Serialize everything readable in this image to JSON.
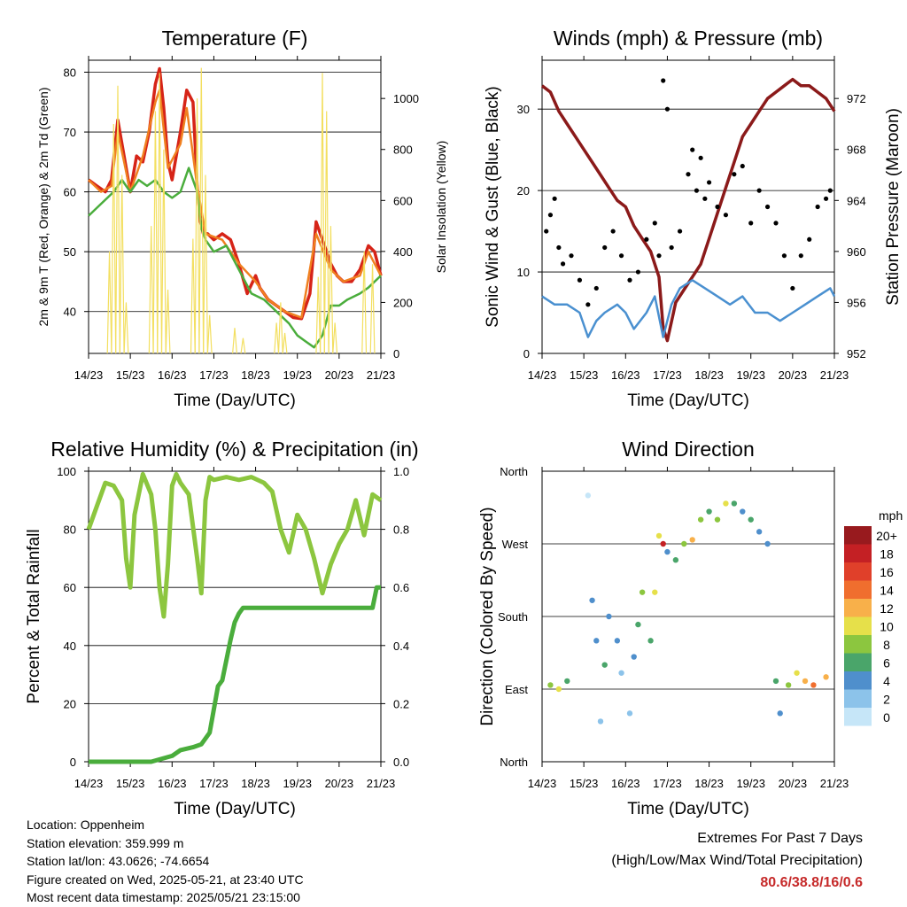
{
  "chart_data": [
    {
      "id": "temperature",
      "type": "line",
      "title": "Temperature (F)",
      "xlabel": "Time (Day/UTC)",
      "ylabel": "2m & 9m T (Red, Orange) & 2m Td (Green)",
      "ylabel_right": "Solar Insolation (Yellow)",
      "x_ticks": [
        "14/23",
        "15/23",
        "16/23",
        "17/23",
        "18/23",
        "19/23",
        "20/23",
        "21/23"
      ],
      "ylim": [
        33,
        82
      ],
      "y_ticks": [
        40,
        50,
        60,
        70,
        80
      ],
      "ylim_right": [
        0,
        1150
      ],
      "y_ticks_right": [
        0,
        200,
        400,
        600,
        800,
        1000
      ],
      "grid": true,
      "series": [
        {
          "color": "#d62418",
          "axis": "left",
          "style": "line",
          "x": [
            0,
            0.2,
            0.4,
            0.55,
            0.7,
            0.85,
            1.0,
            1.15,
            1.3,
            1.45,
            1.6,
            1.7,
            1.8,
            1.9,
            2.0,
            2.1,
            2.2,
            2.35,
            2.5,
            2.6,
            2.68,
            2.75,
            2.85,
            3.0,
            3.2,
            3.4,
            3.6,
            3.8,
            4.0,
            4.1,
            4.2,
            4.3,
            4.5,
            4.7,
            4.9,
            5.1,
            5.3,
            5.45,
            5.6,
            5.8,
            5.95,
            6.1,
            6.3,
            6.5,
            6.7,
            6.85,
            7.0
          ],
          "values": [
            62,
            61,
            60,
            62,
            72,
            66,
            60,
            66,
            65,
            70,
            78,
            80.6,
            74,
            65,
            62,
            66,
            70,
            77,
            75,
            61,
            55,
            53,
            53,
            52,
            53,
            52,
            48,
            43,
            46,
            44,
            43,
            42,
            41,
            40,
            39,
            38.8,
            43,
            55,
            52,
            48,
            46,
            45,
            45,
            47,
            51,
            50,
            46
          ]
        },
        {
          "color": "#f08020",
          "axis": "left",
          "style": "line",
          "x": [
            0,
            0.3,
            0.55,
            0.7,
            0.85,
            1.0,
            1.3,
            1.6,
            1.7,
            1.9,
            2.2,
            2.35,
            2.6,
            2.8,
            3.2,
            3.6,
            4.0,
            4.3,
            4.7,
            5.1,
            5.45,
            5.8,
            6.1,
            6.5,
            6.7,
            7.0
          ],
          "values": [
            62,
            60,
            61,
            70,
            65,
            60,
            66,
            75,
            77,
            64,
            68,
            74,
            61,
            53,
            52,
            48,
            45,
            42,
            40,
            39,
            53,
            47,
            45,
            46,
            50,
            46
          ]
        },
        {
          "color": "#4aad3c",
          "axis": "left",
          "style": "line",
          "x": [
            0,
            0.3,
            0.6,
            0.8,
            1.0,
            1.2,
            1.4,
            1.6,
            1.8,
            2.0,
            2.2,
            2.4,
            2.6,
            2.7,
            2.8,
            3.0,
            3.3,
            3.6,
            3.9,
            4.2,
            4.5,
            4.8,
            5.0,
            5.2,
            5.4,
            5.6,
            5.8,
            6.0,
            6.2,
            6.5,
            6.7,
            7.0
          ],
          "values": [
            56,
            58,
            60,
            62,
            60,
            62,
            61,
            62,
            60,
            59,
            60,
            64,
            60,
            54,
            52,
            50,
            51,
            47,
            43,
            42,
            40,
            38,
            36,
            35,
            34,
            36,
            41,
            41,
            42,
            43,
            44,
            46
          ]
        },
        {
          "color": "#f3df60",
          "axis": "right",
          "style": "spikes",
          "x": [
            0.5,
            0.6,
            0.7,
            0.8,
            0.9,
            1.5,
            1.6,
            1.7,
            1.8,
            1.9,
            2.5,
            2.6,
            2.7,
            2.8,
            2.9,
            3.5,
            3.7,
            4.5,
            4.6,
            4.7,
            5.5,
            5.6,
            5.7,
            5.8,
            5.9,
            6.6,
            6.8
          ],
          "values": [
            400,
            900,
            1050,
            700,
            200,
            500,
            950,
            1100,
            800,
            250,
            450,
            1000,
            1120,
            700,
            150,
            100,
            60,
            120,
            200,
            80,
            300,
            1100,
            950,
            500,
            120,
            400,
            350
          ]
        }
      ]
    },
    {
      "id": "winds",
      "type": "line",
      "title": "Winds (mph) & Pressure (mb)",
      "xlabel": "Time (Day/UTC)",
      "ylabel": "Sonic Wind & Gust (Blue, Black)",
      "ylabel_right": "Station Pressure (Maroon)",
      "x_ticks": [
        "14/23",
        "15/23",
        "16/23",
        "17/23",
        "18/23",
        "19/23",
        "20/23",
        "21/23"
      ],
      "ylim": [
        0,
        36
      ],
      "y_ticks": [
        0,
        10,
        20,
        30
      ],
      "ylim_right": [
        952,
        975
      ],
      "y_ticks_right": [
        952,
        956,
        960,
        964,
        968,
        972
      ],
      "grid": true,
      "series": [
        {
          "color": "#8b1a1a",
          "axis": "right",
          "style": "line",
          "x": [
            0,
            0.2,
            0.4,
            0.6,
            0.8,
            1.0,
            1.2,
            1.4,
            1.6,
            1.8,
            2.0,
            2.2,
            2.4,
            2.6,
            2.8,
            2.9,
            3.0,
            3.2,
            3.4,
            3.6,
            3.8,
            4.0,
            4.2,
            4.4,
            4.6,
            4.8,
            5.0,
            5.2,
            5.4,
            5.6,
            5.8,
            6.0,
            6.2,
            6.4,
            6.6,
            6.8,
            7.0
          ],
          "values": [
            973,
            972.5,
            971,
            970,
            969,
            968,
            967,
            966,
            965,
            964,
            963.5,
            962,
            961,
            960,
            958,
            954,
            953,
            956,
            957,
            958,
            959,
            961,
            963,
            965,
            967,
            969,
            970,
            971,
            972,
            972.5,
            973,
            973.5,
            973,
            973,
            972.5,
            972,
            971
          ]
        },
        {
          "color": "#4a90d0",
          "axis": "left",
          "style": "line",
          "x": [
            0,
            0.3,
            0.6,
            0.9,
            1.1,
            1.3,
            1.5,
            1.8,
            2.0,
            2.2,
            2.5,
            2.7,
            2.9,
            3.1,
            3.3,
            3.6,
            3.9,
            4.2,
            4.5,
            4.8,
            5.1,
            5.4,
            5.7,
            6.0,
            6.3,
            6.6,
            6.9,
            7.0
          ],
          "values": [
            7,
            6,
            6,
            5,
            2,
            4,
            5,
            6,
            5,
            3,
            5,
            7,
            2,
            6,
            8,
            9,
            8,
            7,
            6,
            7,
            5,
            5,
            4,
            5,
            6,
            7,
            8,
            7
          ]
        },
        {
          "color": "#000000",
          "axis": "left",
          "style": "dots",
          "x": [
            0.1,
            0.2,
            0.3,
            0.4,
            0.5,
            0.7,
            0.9,
            1.1,
            1.3,
            1.5,
            1.7,
            1.9,
            2.1,
            2.3,
            2.5,
            2.7,
            2.8,
            2.9,
            3.0,
            3.1,
            3.3,
            3.5,
            3.6,
            3.7,
            3.8,
            3.9,
            4.0,
            4.2,
            4.4,
            4.6,
            4.8,
            5.0,
            5.2,
            5.4,
            5.6,
            5.8,
            6.0,
            6.2,
            6.4,
            6.6,
            6.8,
            6.9
          ],
          "values": [
            15,
            17,
            19,
            13,
            11,
            12,
            9,
            6,
            8,
            13,
            15,
            12,
            9,
            10,
            14,
            16,
            12,
            33.5,
            30,
            13,
            15,
            22,
            25,
            20,
            24,
            19,
            21,
            18,
            17,
            22,
            23,
            16,
            20,
            18,
            16,
            12,
            8,
            12,
            14,
            18,
            19,
            20
          ]
        }
      ]
    },
    {
      "id": "humidity",
      "type": "line",
      "title": "Relative Humidity (%) & Precipitation (in)",
      "xlabel": "Time (Day/UTC)",
      "ylabel": "Percent & Total Rainfall",
      "x_ticks": [
        "14/23",
        "15/23",
        "16/23",
        "17/23",
        "18/23",
        "19/23",
        "20/23",
        "21/23"
      ],
      "ylim": [
        0,
        100
      ],
      "y_ticks": [
        0,
        20,
        40,
        60,
        80,
        100
      ],
      "ylim_right": [
        0,
        1.0
      ],
      "y_ticks_right": [
        "0.0",
        "0.2",
        "0.4",
        "0.6",
        "0.8",
        "1.0"
      ],
      "grid": true,
      "series": [
        {
          "color": "#8cc63f",
          "axis": "left",
          "style": "line",
          "x": [
            0,
            0.2,
            0.4,
            0.6,
            0.8,
            0.9,
            1.0,
            1.1,
            1.3,
            1.5,
            1.6,
            1.7,
            1.8,
            1.9,
            2.0,
            2.1,
            2.2,
            2.4,
            2.6,
            2.7,
            2.8,
            2.9,
            3.0,
            3.3,
            3.6,
            3.9,
            4.2,
            4.4,
            4.6,
            4.8,
            5.0,
            5.2,
            5.4,
            5.6,
            5.8,
            6.0,
            6.2,
            6.4,
            6.6,
            6.8,
            7.0
          ],
          "values": [
            80,
            88,
            96,
            95,
            90,
            70,
            60,
            85,
            99,
            92,
            80,
            60,
            50,
            68,
            95,
            99,
            96,
            92,
            70,
            58,
            90,
            98,
            97,
            98,
            97,
            98,
            96,
            93,
            80,
            72,
            85,
            80,
            70,
            58,
            68,
            75,
            80,
            90,
            78,
            92,
            90
          ]
        },
        {
          "color": "#4aad3c",
          "axis": "right",
          "style": "line",
          "x": [
            0,
            0.5,
            1.0,
            1.5,
            2.0,
            2.2,
            2.5,
            2.7,
            2.9,
            3.0,
            3.1,
            3.2,
            3.3,
            3.4,
            3.5,
            3.6,
            3.7,
            3.8,
            4.0,
            4.5,
            5.0,
            5.5,
            6.0,
            6.5,
            6.8,
            6.9,
            7.0
          ],
          "values": [
            0,
            0,
            0,
            0,
            0.02,
            0.04,
            0.05,
            0.06,
            0.1,
            0.18,
            0.26,
            0.28,
            0.35,
            0.42,
            0.48,
            0.51,
            0.53,
            0.53,
            0.53,
            0.53,
            0.53,
            0.53,
            0.53,
            0.53,
            0.53,
            0.6,
            0.6
          ]
        }
      ]
    },
    {
      "id": "winddir",
      "type": "scatter",
      "title": "Wind Direction",
      "xlabel": "Time (Day/UTC)",
      "ylabel": "Direction (Colored By Speed)",
      "x_ticks": [
        "14/23",
        "15/23",
        "16/23",
        "17/23",
        "18/23",
        "19/23",
        "20/23",
        "21/23"
      ],
      "y_ticks": [
        "North",
        "East",
        "South",
        "West",
        "North"
      ],
      "ylim": [
        0,
        360
      ],
      "grid": true,
      "legend": {
        "title": "mph",
        "labels": [
          "0",
          "2",
          "4",
          "6",
          "8",
          "10",
          "12",
          "14",
          "16",
          "18",
          "20+"
        ],
        "colors": [
          "#c6e6f8",
          "#8cc3ea",
          "#4f8fcc",
          "#4aa56a",
          "#8cc63f",
          "#e6e04a",
          "#f8b04a",
          "#f06e2e",
          "#e0402a",
          "#c42024",
          "#981a1e"
        ],
        "placement": "right"
      },
      "points": [
        {
          "x": 0.2,
          "y": 95,
          "v": 8
        },
        {
          "x": 0.4,
          "y": 90,
          "v": 10
        },
        {
          "x": 0.6,
          "y": 100,
          "v": 6
        },
        {
          "x": 1.1,
          "y": 330,
          "v": 0
        },
        {
          "x": 1.2,
          "y": 200,
          "v": 4
        },
        {
          "x": 1.3,
          "y": 150,
          "v": 4
        },
        {
          "x": 1.4,
          "y": 50,
          "v": 2
        },
        {
          "x": 1.5,
          "y": 120,
          "v": 6
        },
        {
          "x": 1.6,
          "y": 180,
          "v": 4
        },
        {
          "x": 1.8,
          "y": 150,
          "v": 4
        },
        {
          "x": 1.9,
          "y": 110,
          "v": 2
        },
        {
          "x": 2.1,
          "y": 60,
          "v": 2
        },
        {
          "x": 2.2,
          "y": 130,
          "v": 4
        },
        {
          "x": 2.3,
          "y": 170,
          "v": 6
        },
        {
          "x": 2.4,
          "y": 210,
          "v": 8
        },
        {
          "x": 2.6,
          "y": 150,
          "v": 6
        },
        {
          "x": 2.7,
          "y": 210,
          "v": 10
        },
        {
          "x": 2.8,
          "y": 280,
          "v": 10
        },
        {
          "x": 2.9,
          "y": 270,
          "v": 18
        },
        {
          "x": 3.0,
          "y": 260,
          "v": 4
        },
        {
          "x": 3.2,
          "y": 250,
          "v": 6
        },
        {
          "x": 3.4,
          "y": 270,
          "v": 8
        },
        {
          "x": 3.6,
          "y": 275,
          "v": 12
        },
        {
          "x": 3.8,
          "y": 300,
          "v": 8
        },
        {
          "x": 4.0,
          "y": 310,
          "v": 6
        },
        {
          "x": 4.2,
          "y": 300,
          "v": 8
        },
        {
          "x": 4.4,
          "y": 320,
          "v": 10
        },
        {
          "x": 4.6,
          "y": 320,
          "v": 6
        },
        {
          "x": 4.8,
          "y": 310,
          "v": 4
        },
        {
          "x": 5.0,
          "y": 300,
          "v": 6
        },
        {
          "x": 5.2,
          "y": 285,
          "v": 4
        },
        {
          "x": 5.4,
          "y": 270,
          "v": 4
        },
        {
          "x": 5.6,
          "y": 100,
          "v": 6
        },
        {
          "x": 5.7,
          "y": 60,
          "v": 4
        },
        {
          "x": 5.9,
          "y": 95,
          "v": 8
        },
        {
          "x": 6.1,
          "y": 110,
          "v": 10
        },
        {
          "x": 6.3,
          "y": 100,
          "v": 12
        },
        {
          "x": 6.5,
          "y": 95,
          "v": 14
        },
        {
          "x": 6.8,
          "y": 105,
          "v": 12
        }
      ]
    }
  ],
  "info": {
    "location": "Location: Oppenheim",
    "elevation": "Station elevation: 359.999 m",
    "latlon": "Station lat/lon: 43.0626; -74.6654",
    "created": "Figure created on Wed, 2025-05-21, at 23:40 UTC",
    "recent": "Most recent data timestamp: 2025/05/21 23:15:00"
  },
  "extremes": {
    "title": "Extremes For Past 7 Days",
    "subtitle": "(High/Low/Max Wind/Total Precipitation)",
    "values": "80.6/38.8/16/0.6"
  }
}
